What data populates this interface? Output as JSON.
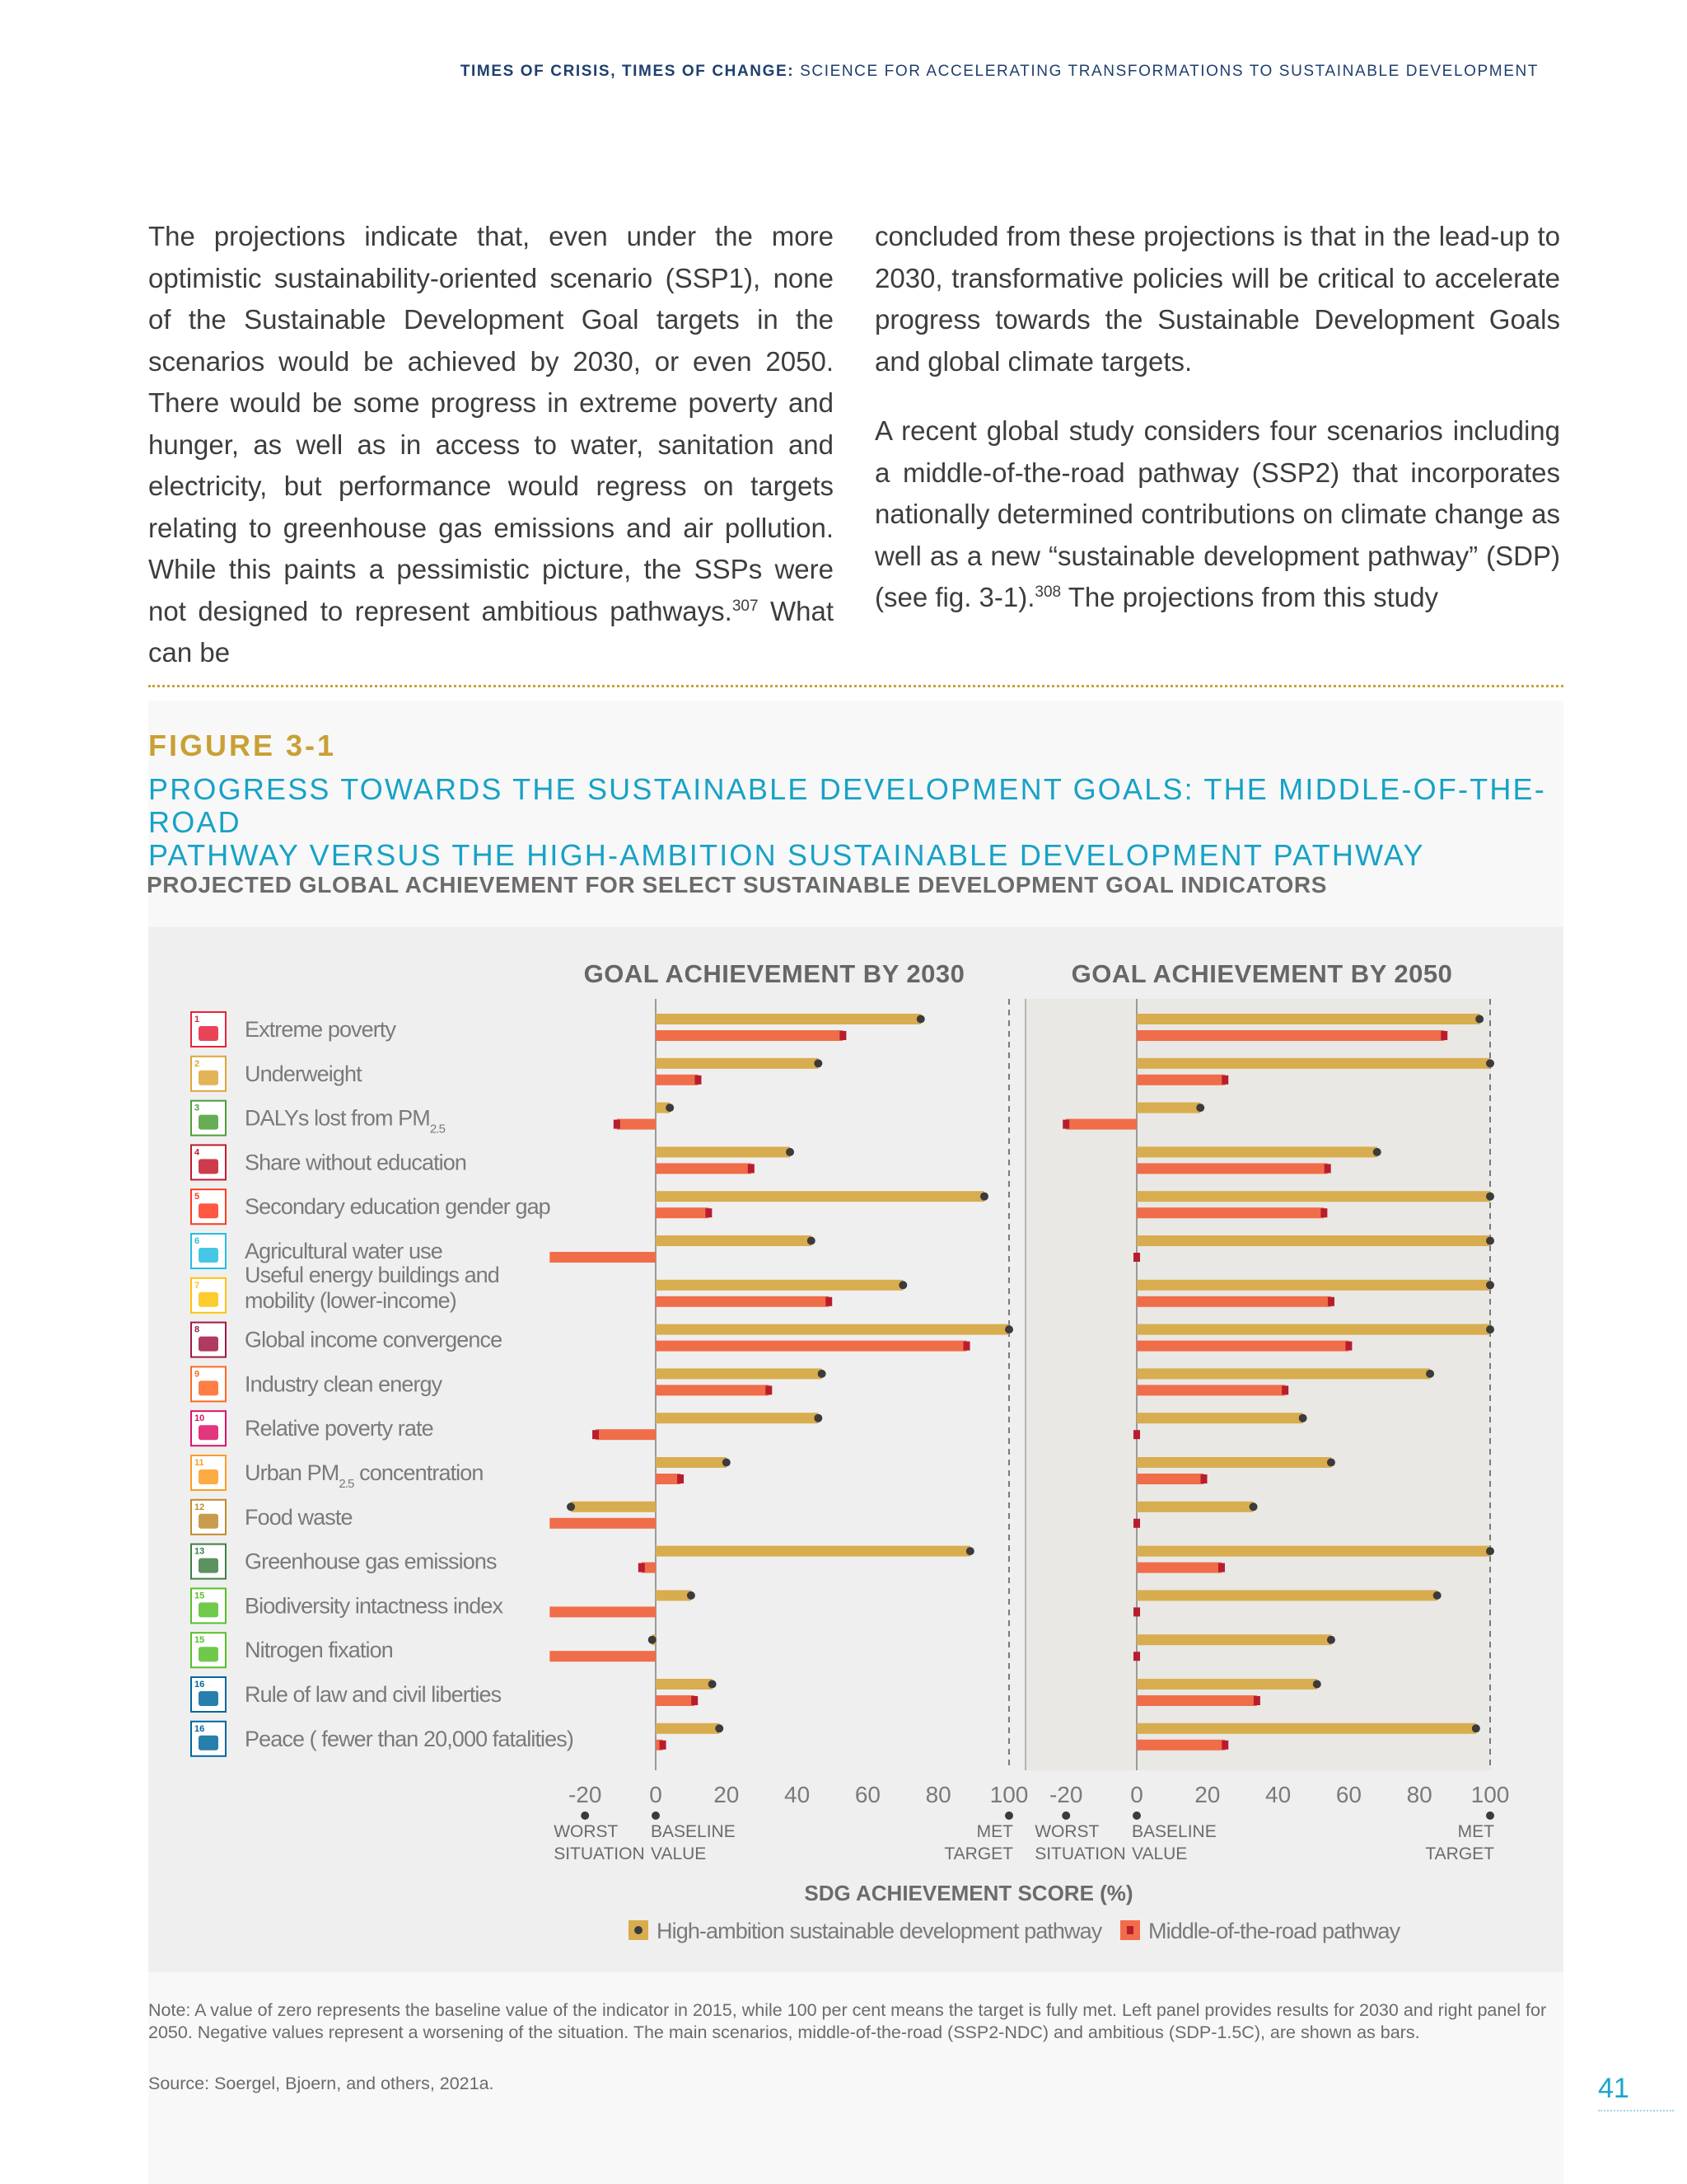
{
  "header": {
    "bold": "TIMES OF CRISIS, TIMES OF CHANGE:",
    "rest": " SCIENCE FOR ACCELERATING TRANSFORMATIONS TO SUSTAINABLE DEVELOPMENT"
  },
  "body": {
    "left_paragraph": "The projections indicate that, even under the more optimistic sustainability-oriented scenario (SSP1), none of the Sustainable Development Goal targets in the scenarios would be achieved by 2030, or even 2050. There would be some progress in extreme poverty and hunger, as well as in access to water, sanitation and electricity, but performance would regress on targets relating to greenhouse gas emissions and air pollution. While this paints a pessimistic picture, the SSPs were not designed to represent ambitious pathways.",
    "left_ref": "307",
    "left_tail": " What can be",
    "right_paragraph_1": "concluded from these projections is that in the lead-up to 2030, transformative policies will be critical to accelerate progress towards the Sustainable Development Goals and global climate targets.",
    "right_paragraph_2": "A recent global study considers four scenarios including a middle-of-the-road pathway (SSP2) that incorporates nationally determined contributions on climate change as well as a new “sustainable development pathway” (SDP) (see fig. 3-1).",
    "right_ref": "308",
    "right_tail": " The projections from this study"
  },
  "figure": {
    "label": "FIGURE 3-1",
    "title_line1": "PROGRESS TOWARDS THE SUSTAINABLE DEVELOPMENT GOALS: THE MIDDLE-OF-THE-ROAD",
    "title_line2": "PATHWAY VERSUS THE HIGH-AMBITION SUSTAINABLE DEVELOPMENT PATHWAY",
    "subtitle": "PROJECTED GLOBAL ACHIEVEMENT FOR SELECT SUSTAINABLE DEVELOPMENT GOAL INDICATORS",
    "note": "Note: A value of zero represents the baseline value of the indicator in 2015, while 100 per cent means the target is fully met. Left panel provides results for 2030 and right panel for 2050. Negative values represent a worsening of the situation. The main scenarios, middle-of-the-road (SSP2-NDC) and ambitious (SDP-1.5C), are shown as bars.",
    "source": "Source: Soergel, Bjoern, and others, 2021a."
  },
  "page_number": "41",
  "chart_data": {
    "type": "bar",
    "orientation": "horizontal",
    "xlabel": "SDG ACHIEVEMENT SCORE (%)",
    "xlim": [
      -30,
      100
    ],
    "xticks": [
      -20,
      0,
      20,
      40,
      60,
      80,
      100
    ],
    "tick_annotations": [
      {
        "at": -20,
        "line1": "WORST",
        "line2": "SITUATION"
      },
      {
        "at": 0,
        "line1": "BASELINE",
        "line2": "VALUE"
      },
      {
        "at": 100,
        "line1": "MET",
        "line2": "TARGET"
      }
    ],
    "colors": {
      "high_ambition": "#d8ad4f",
      "middle_road": "#f06d4a",
      "dot": "#3b3b3b",
      "square": "#b81d2e"
    },
    "legend": [
      "High-ambition sustainable development pathway",
      "Middle-of-the-road pathway"
    ],
    "legend_position": "bottom",
    "categories": [
      {
        "sdg": "1",
        "color": "#e5243b",
        "label": [
          "Extreme poverty"
        ]
      },
      {
        "sdg": "2",
        "color": "#dda63a",
        "label": [
          "Underweight"
        ]
      },
      {
        "sdg": "3",
        "color": "#4c9f38",
        "label": [
          "DALYs lost from PM"
        ],
        "sub": "2.5"
      },
      {
        "sdg": "4",
        "color": "#c5192d",
        "label": [
          "Share without education"
        ]
      },
      {
        "sdg": "5",
        "color": "#ff3a21",
        "label": [
          "Secondary education gender gap"
        ]
      },
      {
        "sdg": "6",
        "color": "#26bde2",
        "label": [
          "Agricultural water use"
        ]
      },
      {
        "sdg": "7",
        "color": "#fcc30b",
        "label": [
          "Useful energy buildings and",
          "mobility (lower-income)"
        ]
      },
      {
        "sdg": "8",
        "color": "#a21942",
        "label": [
          "Global income convergence"
        ]
      },
      {
        "sdg": "9",
        "color": "#fd6925",
        "label": [
          "Industry clean energy"
        ]
      },
      {
        "sdg": "10",
        "color": "#dd1367",
        "label": [
          "Relative poverty rate"
        ]
      },
      {
        "sdg": "11",
        "color": "#fd9d24",
        "label": [
          "Urban PM",
          " concentration"
        ],
        "sub": "2.5"
      },
      {
        "sdg": "12",
        "color": "#bf8b2e",
        "label": [
          "Food waste"
        ]
      },
      {
        "sdg": "13",
        "color": "#3f7e44",
        "label": [
          "Greenhouse gas emissions"
        ]
      },
      {
        "sdg": "15",
        "color": "#56c02b",
        "label": [
          "Biodiversity intactness index"
        ]
      },
      {
        "sdg": "15",
        "color": "#56c02b",
        "label": [
          "Nitrogen fixation"
        ]
      },
      {
        "sdg": "16",
        "color": "#00689d",
        "label": [
          "Rule of law and civil liberties"
        ]
      },
      {
        "sdg": "16",
        "color": "#00689d",
        "label": [
          "Peace ( fewer than 20,000 fatalities)"
        ]
      }
    ],
    "panels": [
      {
        "title": "GOAL ACHIEVEMENT BY 2030",
        "series": [
          {
            "name": "High-ambition sustainable development pathway",
            "values": [
              75,
              46,
              4,
              38,
              93,
              44,
              70,
              100,
              47,
              46,
              20,
              -24,
              89,
              10,
              -1,
              16,
              18
            ]
          },
          {
            "name": "Middle-of-the-road pathway",
            "values": [
              53,
              12,
              -11,
              27,
              15,
              -30,
              49,
              88,
              32,
              -17,
              7,
              -30,
              -4,
              -30,
              -30,
              11,
              2
            ]
          }
        ]
      },
      {
        "title": "GOAL ACHIEVEMENT BY 2050",
        "series": [
          {
            "name": "High-ambition sustainable development pathway",
            "values": [
              97,
              100,
              18,
              68,
              100,
              100,
              100,
              100,
              83,
              47,
              55,
              33,
              100,
              85,
              55,
              51,
              96
            ]
          },
          {
            "name": "Middle-of-the-road pathway",
            "values": [
              87,
              25,
              -20,
              54,
              53,
              0,
              55,
              60,
              42,
              0,
              19,
              0,
              24,
              0,
              0,
              34,
              25
            ]
          }
        ]
      }
    ]
  }
}
